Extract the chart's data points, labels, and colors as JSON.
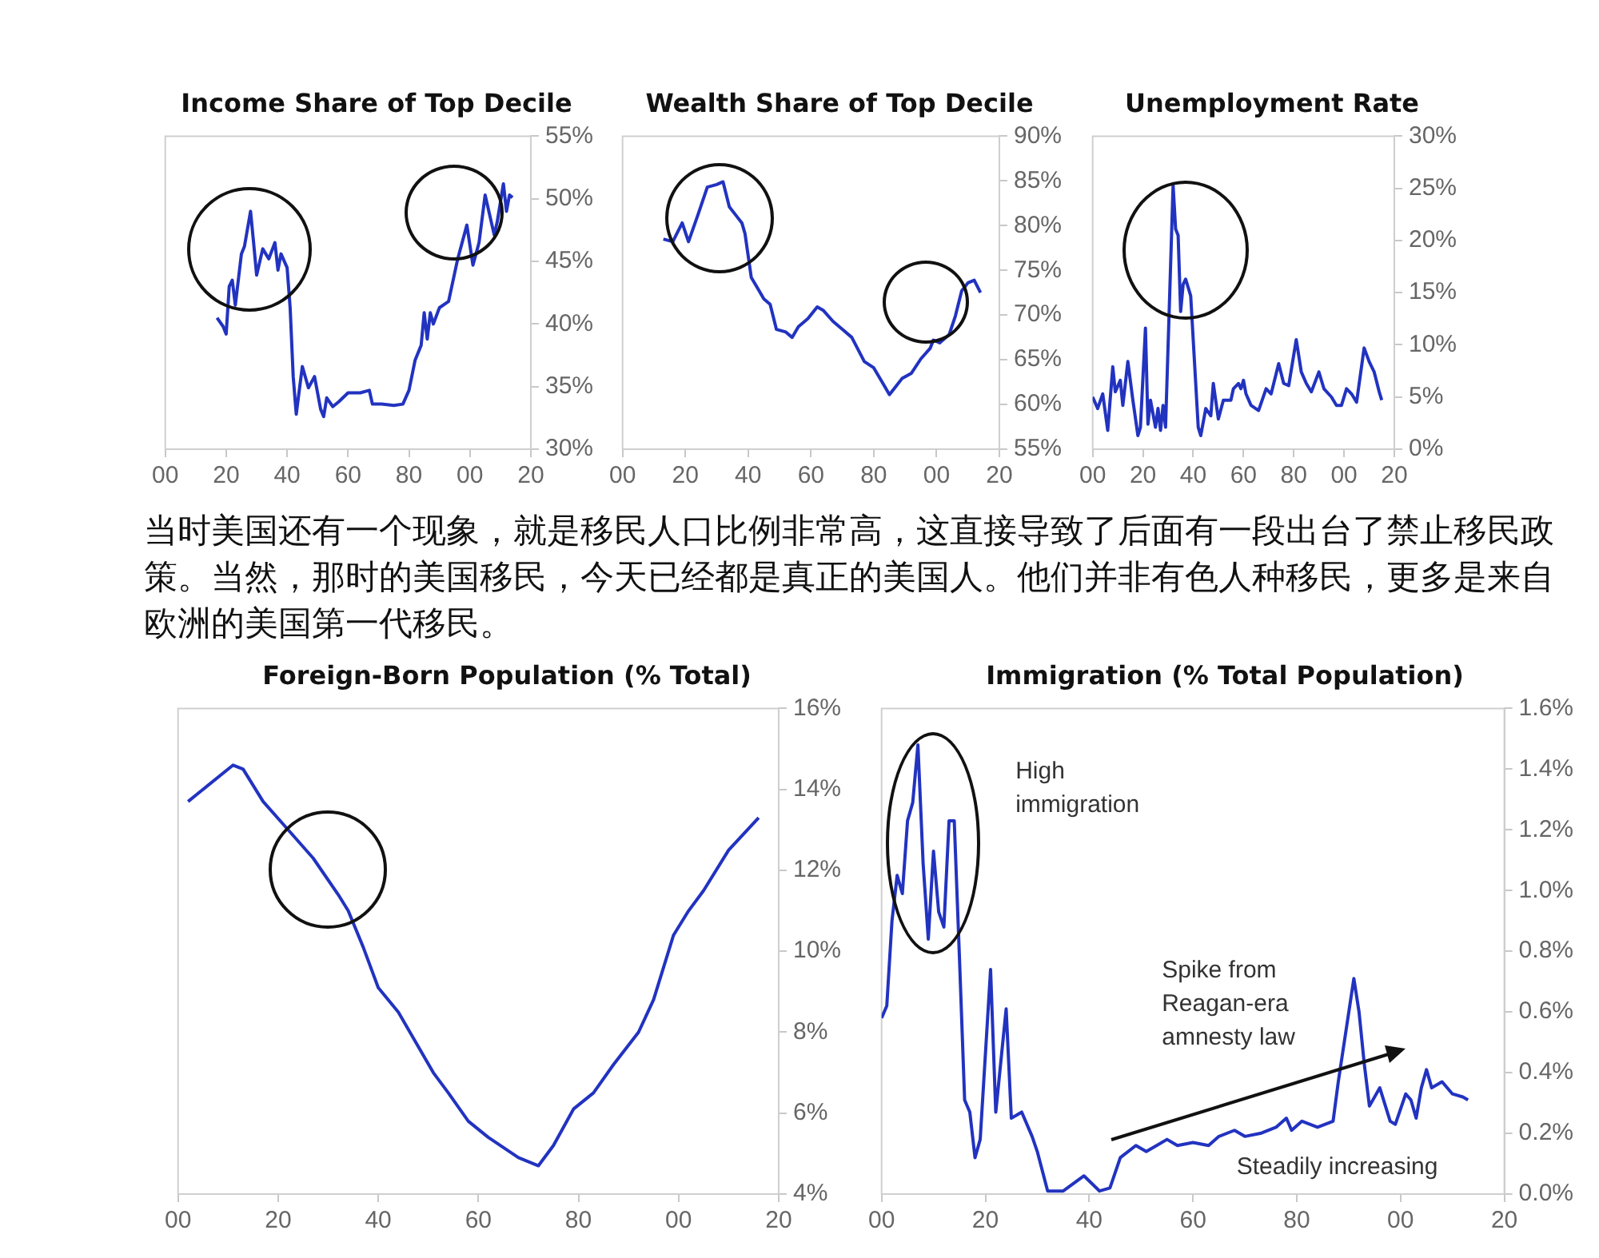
{
  "chart_data": [
    {
      "type": "line",
      "title": "Income Share of Top Decile",
      "x": [
        1917,
        1919,
        1920,
        1921,
        1922,
        1923,
        1925,
        1926,
        1928,
        1929,
        1930,
        1932,
        1934,
        1936,
        1937,
        1938,
        1940,
        1941,
        1942,
        1943,
        1945,
        1947,
        1949,
        1951,
        1952,
        1953,
        1955,
        1957,
        1960,
        1964,
        1967,
        1968,
        1971,
        1975,
        1978,
        1980,
        1982,
        1984,
        1985,
        1986,
        1987,
        1988,
        1990,
        1993,
        1996,
        1999,
        2001,
        2003,
        2005,
        2008,
        2009,
        2011,
        2012,
        2013,
        2014
      ],
      "series": [
        {
          "color": "#2233c0",
          "values": [
            40.5,
            39.8,
            39.2,
            43.0,
            43.5,
            41.5,
            45.6,
            46.2,
            49.0,
            46.5,
            43.9,
            46.0,
            45.2,
            46.5,
            44.3,
            45.6,
            44.5,
            41.3,
            35.8,
            32.8,
            36.6,
            34.9,
            35.8,
            33.2,
            32.6,
            34.1,
            33.4,
            33.8,
            34.5,
            34.5,
            34.7,
            33.6,
            33.6,
            33.5,
            33.6,
            34.7,
            37.1,
            38.3,
            40.9,
            38.8,
            40.9,
            40.0,
            41.3,
            41.8,
            45.2,
            47.9,
            44.7,
            46.5,
            50.3,
            47.1,
            48.2,
            51.2,
            49.0,
            50.3,
            50.1
          ]
        }
      ],
      "xlim": [
        1900,
        2020
      ],
      "xticks": [
        {
          "value": 1900,
          "label": "00"
        },
        {
          "value": 1920,
          "label": "20"
        },
        {
          "value": 1940,
          "label": "40"
        },
        {
          "value": 1960,
          "label": "60"
        },
        {
          "value": 1980,
          "label": "80"
        },
        {
          "value": 2000,
          "label": "00"
        },
        {
          "value": 2020,
          "label": "20"
        }
      ],
      "ylim": [
        30,
        55
      ],
      "yticks": [
        {
          "value": 30,
          "label": "30%"
        },
        {
          "value": 35,
          "label": "35%"
        },
        {
          "value": 40,
          "label": "40%"
        },
        {
          "value": 45,
          "label": "45%"
        },
        {
          "value": 50,
          "label": "50%"
        },
        {
          "value": 55,
          "label": "55%"
        }
      ]
    },
    {
      "type": "line",
      "title": "Wealth Share of Top Decile",
      "x": [
        1913,
        1916,
        1919,
        1921,
        1924,
        1927,
        1930,
        1932,
        1934,
        1936,
        1938,
        1939,
        1941,
        1943,
        1945,
        1947,
        1949,
        1952,
        1954,
        1956,
        1959,
        1962,
        1964,
        1967,
        1970,
        1973,
        1977,
        1980,
        1983,
        1985,
        1987,
        1989,
        1992,
        1995,
        1998,
        1999,
        2001,
        2004,
        2006,
        2008,
        2010,
        2012,
        2014
      ],
      "series": [
        {
          "color": "#2233c0",
          "values": [
            78.5,
            78.2,
            80.3,
            78.2,
            81.2,
            84.3,
            84.6,
            84.9,
            82.1,
            81.2,
            80.3,
            79.1,
            74.2,
            73.0,
            71.8,
            71.2,
            68.4,
            68.1,
            67.5,
            68.7,
            69.6,
            70.9,
            70.5,
            69.3,
            68.4,
            67.5,
            64.8,
            64.1,
            62.3,
            61.1,
            62.0,
            62.9,
            63.5,
            65.1,
            66.3,
            67.2,
            66.9,
            67.8,
            69.9,
            72.7,
            73.6,
            73.9,
            72.5
          ]
        }
      ],
      "xlim": [
        1900,
        2020
      ],
      "xticks": [
        {
          "value": 1900,
          "label": "00"
        },
        {
          "value": 1920,
          "label": "20"
        },
        {
          "value": 1940,
          "label": "40"
        },
        {
          "value": 1960,
          "label": "60"
        },
        {
          "value": 1980,
          "label": "80"
        },
        {
          "value": 2000,
          "label": "00"
        },
        {
          "value": 2020,
          "label": "20"
        }
      ],
      "ylim": [
        55,
        90
      ],
      "yticks": [
        {
          "value": 55,
          "label": "55%"
        },
        {
          "value": 60,
          "label": "60%"
        },
        {
          "value": 65,
          "label": "65%"
        },
        {
          "value": 70,
          "label": "70%"
        },
        {
          "value": 75,
          "label": "75%"
        },
        {
          "value": 80,
          "label": "80%"
        },
        {
          "value": 85,
          "label": "85%"
        },
        {
          "value": 90,
          "label": "90%"
        }
      ]
    },
    {
      "type": "line",
      "title": "Unemployment Rate",
      "x": [
        1900,
        1902,
        1904,
        1906,
        1908,
        1909,
        1911,
        1912,
        1914,
        1916,
        1918,
        1919,
        1921,
        1922,
        1923,
        1925,
        1926,
        1927,
        1928,
        1929,
        1932,
        1933,
        1934,
        1935,
        1936,
        1937,
        1939,
        1940,
        1942,
        1943,
        1945,
        1947,
        1948,
        1950,
        1952,
        1955,
        1956,
        1958,
        1959,
        1960,
        1961,
        1963,
        1966,
        1969,
        1971,
        1974,
        1976,
        1978,
        1981,
        1983,
        1985,
        1987,
        1990,
        1992,
        1995,
        1997,
        1999,
        2001,
        2003,
        2005,
        2008,
        2010,
        2012,
        2014,
        2015
      ],
      "series": [
        {
          "color": "#2233c0",
          "values": [
            5.0,
            3.9,
            5.3,
            1.8,
            7.9,
            5.5,
            6.6,
            4.2,
            8.4,
            4.7,
            1.3,
            2.1,
            11.6,
            2.4,
            4.7,
            2.1,
            3.9,
            1.8,
            4.2,
            2.1,
            25.3,
            21.1,
            20.5,
            13.2,
            15.8,
            16.3,
            14.7,
            10.5,
            2.1,
            1.3,
            3.9,
            3.2,
            6.3,
            2.9,
            4.7,
            4.7,
            5.8,
            6.3,
            5.8,
            6.6,
            5.3,
            4.2,
            3.7,
            5.8,
            5.3,
            8.2,
            6.3,
            6.1,
            10.5,
            7.4,
            6.3,
            5.5,
            7.4,
            5.8,
            5.0,
            4.2,
            4.2,
            5.8,
            5.3,
            4.5,
            9.7,
            8.4,
            7.4,
            5.5,
            4.7
          ]
        }
      ],
      "xlim": [
        1900,
        2020
      ],
      "xticks": [
        {
          "value": 1900,
          "label": "00"
        },
        {
          "value": 1920,
          "label": "20"
        },
        {
          "value": 1940,
          "label": "40"
        },
        {
          "value": 1960,
          "label": "60"
        },
        {
          "value": 1980,
          "label": "80"
        },
        {
          "value": 2000,
          "label": "00"
        },
        {
          "value": 2020,
          "label": "20"
        }
      ],
      "ylim": [
        0,
        30
      ],
      "yticks": [
        {
          "value": 0,
          "label": "0%"
        },
        {
          "value": 5,
          "label": "5%"
        },
        {
          "value": 10,
          "label": "10%"
        },
        {
          "value": 15,
          "label": "15%"
        },
        {
          "value": 20,
          "label": "20%"
        },
        {
          "value": 25,
          "label": "25%"
        },
        {
          "value": 30,
          "label": "30%"
        }
      ]
    },
    {
      "type": "other",
      "annotations": [
        "当时美国还有一个现象，就是移民人口比例非常高，这直接导致了后面有一段出台了禁止移民政策。当然，那时的美国移民，今天已经都是真正的美国人。他们并非有色人种移民，更多是来自欧洲的美国第一代移民。"
      ]
    },
    {
      "type": "line",
      "title": "Foreign-Born Population (% Total)",
      "x": [
        1902,
        1911,
        1913,
        1917,
        1922,
        1927,
        1932,
        1934,
        1937,
        1940,
        1944,
        1951,
        1954,
        1958,
        1962,
        1968,
        1972,
        1975,
        1979,
        1983,
        1987,
        1992,
        1995,
        1999,
        2002,
        2005,
        2010,
        2013,
        2016
      ],
      "series": [
        {
          "color": "#2233c0",
          "values": [
            13.7,
            14.6,
            14.5,
            13.7,
            13.0,
            12.3,
            11.4,
            11.0,
            10.1,
            9.1,
            8.5,
            7.0,
            6.5,
            5.8,
            5.4,
            4.9,
            4.7,
            5.2,
            6.1,
            6.5,
            7.2,
            8.0,
            8.8,
            10.4,
            11.0,
            11.5,
            12.5,
            12.9,
            13.3
          ]
        }
      ],
      "xlim": [
        1900,
        2020
      ],
      "xticks": [
        {
          "value": 1900,
          "label": "00"
        },
        {
          "value": 1920,
          "label": "20"
        },
        {
          "value": 1940,
          "label": "40"
        },
        {
          "value": 1960,
          "label": "60"
        },
        {
          "value": 1980,
          "label": "80"
        },
        {
          "value": 2000,
          "label": "00"
        },
        {
          "value": 2020,
          "label": "20"
        }
      ],
      "ylim": [
        4,
        16
      ],
      "yticks": [
        {
          "value": 4,
          "label": "4%"
        },
        {
          "value": 6,
          "label": "6%"
        },
        {
          "value": 8,
          "label": "8%"
        },
        {
          "value": 10,
          "label": "10%"
        },
        {
          "value": 12,
          "label": "12%"
        },
        {
          "value": 14,
          "label": "14%"
        },
        {
          "value": 16,
          "label": "16%"
        }
      ]
    },
    {
      "type": "line",
      "title": "Immigration (% Total Population)",
      "x": [
        1900,
        1901,
        1902,
        1903,
        1904,
        1905,
        1906,
        1907,
        1908,
        1909,
        1910,
        1911,
        1912,
        1913,
        1914,
        1915,
        1916,
        1917,
        1918,
        1919,
        1921,
        1922,
        1924,
        1925,
        1927,
        1929,
        1930,
        1932,
        1935,
        1939,
        1942,
        1944,
        1946,
        1949,
        1951,
        1953,
        1955,
        1957,
        1960,
        1963,
        1965,
        1968,
        1970,
        1973,
        1976,
        1978,
        1979,
        1981,
        1984,
        1987,
        1988,
        1991,
        1992,
        1993,
        1994,
        1996,
        1998,
        1999,
        2001,
        2002,
        2003,
        2004,
        2005,
        2006,
        2008,
        2010,
        2012,
        2013
      ],
      "series": [
        {
          "color": "#2233c0",
          "values": [
            0.58,
            0.62,
            0.9,
            1.05,
            0.99,
            1.23,
            1.29,
            1.48,
            1.09,
            0.84,
            1.13,
            0.93,
            0.88,
            1.23,
            1.23,
            0.78,
            0.31,
            0.27,
            0.12,
            0.18,
            0.74,
            0.27,
            0.61,
            0.25,
            0.27,
            0.19,
            0.14,
            0.01,
            0.01,
            0.06,
            0.01,
            0.02,
            0.12,
            0.16,
            0.14,
            0.16,
            0.18,
            0.16,
            0.17,
            0.16,
            0.19,
            0.21,
            0.19,
            0.2,
            0.22,
            0.25,
            0.21,
            0.24,
            0.22,
            0.24,
            0.37,
            0.71,
            0.6,
            0.43,
            0.29,
            0.35,
            0.24,
            0.23,
            0.33,
            0.31,
            0.25,
            0.35,
            0.41,
            0.35,
            0.37,
            0.33,
            0.32,
            0.31
          ]
        }
      ],
      "xlim": [
        1900,
        2020
      ],
      "xticks": [
        {
          "value": 1900,
          "label": "00"
        },
        {
          "value": 1920,
          "label": "20"
        },
        {
          "value": 1940,
          "label": "40"
        },
        {
          "value": 1960,
          "label": "60"
        },
        {
          "value": 1980,
          "label": "80"
        },
        {
          "value": 2000,
          "label": "00"
        },
        {
          "value": 2020,
          "label": "20"
        }
      ],
      "ylim": [
        0,
        1.6
      ],
      "yticks": [
        {
          "value": 0,
          "label": "0.0%"
        },
        {
          "value": 0.2,
          "label": "0.2%"
        },
        {
          "value": 0.4,
          "label": "0.4%"
        },
        {
          "value": 0.6,
          "label": "0.6%"
        },
        {
          "value": 0.8,
          "label": "0.8%"
        },
        {
          "value": 1.0,
          "label": "1.0%"
        },
        {
          "value": 1.2,
          "label": "1.2%"
        },
        {
          "value": 1.4,
          "label": "1.4%"
        },
        {
          "value": 1.6,
          "label": "1.6%"
        }
      ],
      "annotations": [
        "High\nimmigration",
        "Spike from\nReagan-era\namnesty law",
        "Steadily increasing"
      ]
    }
  ]
}
